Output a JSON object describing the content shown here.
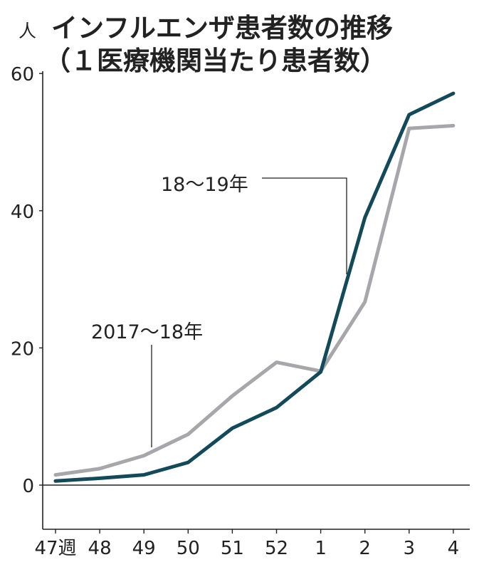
{
  "chart_data": {
    "type": "line",
    "title": "インフルエンザ患者数の推移",
    "subtitle": "（１医療機関当たり患者数）",
    "ylabel": "人",
    "xlabel": "",
    "ylim": [
      -6,
      60
    ],
    "yticks": [
      0,
      20,
      40,
      60
    ],
    "categories": [
      "47週",
      "48",
      "49",
      "50",
      "51",
      "52",
      "1",
      "2",
      "3",
      "4"
    ],
    "grid": false,
    "series": [
      {
        "name": "18～19年",
        "color": "#134a5a",
        "values": [
          0.6,
          1.0,
          1.5,
          3.3,
          8.3,
          11.3,
          16.5,
          39.0,
          54.0,
          57.1
        ]
      },
      {
        "name": "2017～18年",
        "color": "#a7a6ab",
        "values": [
          1.5,
          2.4,
          4.3,
          7.4,
          13.0,
          17.9,
          16.6,
          26.7,
          52.0,
          52.4
        ]
      }
    ],
    "annotations": [
      {
        "text": "18～19年",
        "series_index": 0
      },
      {
        "text": "2017～18年",
        "series_index": 1
      }
    ]
  }
}
